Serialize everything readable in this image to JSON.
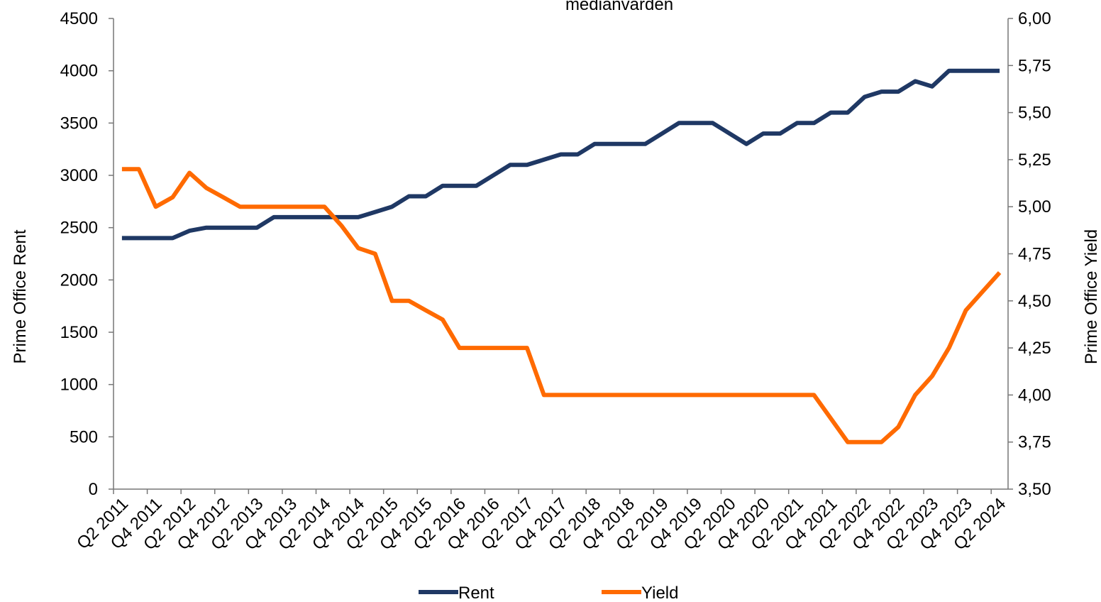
{
  "chart_data": {
    "type": "line",
    "title": "medianvärden",
    "categories": [
      "Q2 2011",
      null,
      "Q4 2011",
      null,
      "Q2 2012",
      null,
      "Q4 2012",
      null,
      "Q2 2013",
      null,
      "Q4 2013",
      null,
      "Q2 2014",
      null,
      "Q4 2014",
      null,
      "Q2 2015",
      null,
      "Q4 2015",
      null,
      "Q2 2016",
      null,
      "Q4 2016",
      null,
      "Q2 2017",
      null,
      "Q4 2017",
      null,
      "Q2 2018",
      null,
      "Q4 2018",
      null,
      "Q2 2019",
      null,
      "Q4 2019",
      null,
      "Q2 2020",
      null,
      "Q4 2020",
      null,
      "Q2 2021",
      null,
      "Q4 2021",
      null,
      "Q2 2022",
      null,
      "Q4 2022",
      null,
      "Q2 2023",
      null,
      "Q4 2023",
      null,
      "Q2 2024"
    ],
    "series": [
      {
        "name": "Rent",
        "color": "#1f3864",
        "values": [
          2400,
          2400,
          2400,
          2400,
          2470,
          2500,
          2500,
          2500,
          2500,
          2600,
          2600,
          2600,
          2600,
          2600,
          2600,
          2650,
          2700,
          2800,
          2800,
          2900,
          2900,
          2900,
          3000,
          3100,
          3100,
          3150,
          3200,
          3200,
          3300,
          3300,
          3300,
          3300,
          3400,
          3500,
          3500,
          3500,
          3400,
          3300,
          3400,
          3400,
          3500,
          3500,
          3600,
          3600,
          3750,
          3800,
          3800,
          3900,
          3850,
          4000,
          4000,
          4000,
          4000
        ]
      },
      {
        "name": "Yield",
        "color": "#ff6a00",
        "axis": "y2",
        "values": [
          5.2,
          5.2,
          5.0,
          5.05,
          5.18,
          5.1,
          5.05,
          5.0,
          5.0,
          5.0,
          5.0,
          5.0,
          5.0,
          4.9,
          4.78,
          4.75,
          4.5,
          4.5,
          4.45,
          4.4,
          4.25,
          4.25,
          4.25,
          4.25,
          4.25,
          4.0,
          4.0,
          4.0,
          4.0,
          4.0,
          4.0,
          4.0,
          4.0,
          4.0,
          4.0,
          4.0,
          4.0,
          4.0,
          4.0,
          4.0,
          4.0,
          4.0,
          3.875,
          3.75,
          3.75,
          3.75,
          3.83,
          4.0,
          4.1,
          4.25,
          4.45,
          4.55,
          4.65
        ]
      }
    ],
    "ylabel": "Prime Office Rent",
    "y2label": "Prime Office Yield",
    "ylim": [
      0,
      4500
    ],
    "yticks": [
      0,
      500,
      1000,
      1500,
      2000,
      2500,
      3000,
      3500,
      4000,
      4500
    ],
    "y2lim": [
      3.5,
      6.0
    ],
    "y2ticks": [
      {
        "value": 3.5,
        "label": "3,50"
      },
      {
        "value": 3.75,
        "label": "3,75"
      },
      {
        "value": 4.0,
        "label": "4,00"
      },
      {
        "value": 4.25,
        "label": "4,25"
      },
      {
        "value": 4.5,
        "label": "4,50"
      },
      {
        "value": 4.75,
        "label": "4,75"
      },
      {
        "value": 5.0,
        "label": "5,00"
      },
      {
        "value": 5.25,
        "label": "5,25"
      },
      {
        "value": 5.5,
        "label": "5,50"
      },
      {
        "value": 5.75,
        "label": "5,75"
      },
      {
        "value": 6.0,
        "label": "6,00"
      }
    ],
    "legend": "bottom"
  }
}
